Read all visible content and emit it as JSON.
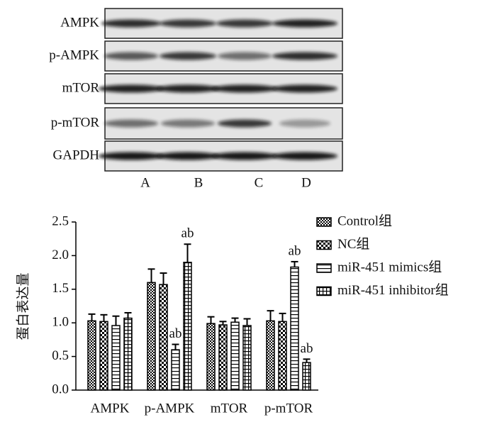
{
  "blot": {
    "rows": [
      "AMPK",
      "p-AMPK",
      "mTOR",
      "p-mTOR",
      "GAPDH"
    ],
    "lanes": [
      "A",
      "B",
      "C",
      "D"
    ]
  },
  "chart_data": {
    "type": "bar",
    "y_label": "蛋白表达量",
    "categories": [
      "AMPK",
      "p-AMPK",
      "mTOR",
      "p-mTOR"
    ],
    "series": [
      {
        "name": "Control组",
        "color": "#000000",
        "values": [
          1.03,
          1.6,
          0.99,
          1.03
        ],
        "errors": [
          0.1,
          0.2,
          0.1,
          0.15
        ]
      },
      {
        "name": "NC组",
        "color": "#000000",
        "values": [
          1.02,
          1.57,
          0.97,
          1.02
        ],
        "errors": [
          0.1,
          0.17,
          0.05,
          0.12
        ]
      },
      {
        "name": "miR-451 mimics组",
        "color": "#000000",
        "values": [
          0.96,
          0.6,
          1.01,
          1.83
        ],
        "errors": [
          0.14,
          0.08,
          0.06,
          0.08
        ],
        "annotations": [
          null,
          "ab",
          null,
          "ab"
        ]
      },
      {
        "name": "miR-451 inhibitor组",
        "color": "#000000",
        "values": [
          1.07,
          1.9,
          0.96,
          0.41
        ],
        "errors": [
          0.08,
          0.27,
          0.1,
          0.05
        ],
        "annotations": [
          null,
          "ab",
          null,
          "ab"
        ]
      }
    ],
    "ylim": [
      0,
      2.5
    ],
    "yticks": [
      {
        "value": 0,
        "label": "0.0"
      },
      0.5,
      {
        "value": 1,
        "label": "1.0"
      },
      1.5,
      {
        "value": 2,
        "label": "2.0"
      },
      2.5
    ],
    "legend": "right"
  }
}
